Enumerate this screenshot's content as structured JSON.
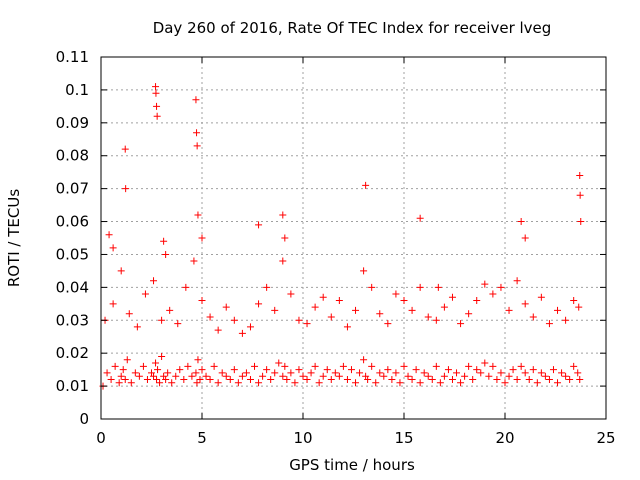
{
  "chart_data": {
    "type": "scatter",
    "title": "Day 260 of 2016, Rate Of TEC Index for receiver lveg",
    "xlabel": "GPS time / hours",
    "ylabel": "ROTI / TECUs",
    "xlim": [
      0,
      25
    ],
    "ylim": [
      0,
      0.11
    ],
    "xticks": [
      0,
      5,
      10,
      15,
      20,
      25
    ],
    "xtick_labels": [
      "0",
      "5",
      "10",
      "15",
      "20",
      "25"
    ],
    "yticks": [
      0,
      0.01,
      0.02,
      0.03,
      0.04,
      0.05,
      0.06,
      0.07,
      0.08,
      0.09,
      0.1,
      0.11
    ],
    "ytick_labels": [
      "0",
      "0.01",
      "0.02",
      "0.03",
      "0.04",
      "0.05",
      "0.06",
      "0.07",
      "0.08",
      "0.09",
      "0.1",
      "0.11"
    ],
    "grid": true,
    "marker": "+",
    "marker_color": "#ff0000",
    "series": [
      {
        "name": "ROTI",
        "x": [
          0.1,
          0.3,
          0.5,
          0.7,
          0.9,
          1.0,
          1.1,
          1.2,
          1.3,
          1.5,
          1.7,
          1.9,
          2.1,
          2.3,
          2.5,
          2.6,
          2.7,
          2.75,
          2.8,
          2.9,
          3.0,
          3.1,
          3.2,
          3.3,
          3.5,
          3.7,
          3.9,
          4.1,
          4.3,
          4.5,
          4.7,
          4.75,
          4.8,
          4.9,
          5.0,
          5.2,
          5.4,
          5.6,
          5.8,
          6.0,
          6.2,
          6.4,
          6.6,
          6.8,
          7.0,
          7.2,
          7.4,
          7.6,
          7.8,
          8.0,
          8.2,
          8.4,
          8.6,
          8.8,
          9.0,
          9.1,
          9.2,
          9.4,
          9.6,
          9.8,
          10.0,
          10.2,
          10.4,
          10.6,
          10.8,
          11.0,
          11.2,
          11.4,
          11.6,
          11.8,
          12.0,
          12.2,
          12.4,
          12.6,
          12.8,
          13.0,
          13.1,
          13.2,
          13.4,
          13.6,
          13.8,
          14.0,
          14.2,
          14.4,
          14.6,
          14.8,
          15.0,
          15.2,
          15.4,
          15.6,
          15.8,
          16.0,
          16.2,
          16.4,
          16.6,
          16.8,
          17.0,
          17.2,
          17.4,
          17.6,
          17.8,
          18.0,
          18.2,
          18.4,
          18.6,
          18.8,
          19.0,
          19.2,
          19.4,
          19.6,
          19.8,
          20.0,
          20.2,
          20.4,
          20.6,
          20.8,
          21.0,
          21.2,
          21.4,
          21.6,
          21.8,
          22.0,
          22.2,
          22.4,
          22.6,
          22.8,
          23.0,
          23.2,
          23.4,
          23.6,
          23.7,
          0.2,
          0.6,
          1.0,
          1.4,
          1.8,
          2.2,
          2.6,
          3.0,
          3.4,
          3.8,
          4.2,
          4.6,
          5.0,
          5.4,
          5.8,
          6.2,
          6.6,
          7.0,
          7.4,
          7.8,
          8.2,
          8.6,
          9.0,
          9.4,
          9.8,
          10.2,
          10.6,
          11.0,
          11.4,
          11.8,
          12.2,
          12.6,
          13.0,
          13.4,
          13.8,
          14.2,
          14.6,
          15.0,
          15.4,
          15.8,
          16.2,
          16.6,
          17.0,
          17.4,
          17.8,
          18.2,
          18.6,
          19.0,
          19.4,
          19.8,
          20.2,
          20.6,
          21.0,
          21.4,
          21.8,
          22.2,
          22.6,
          23.0,
          23.4,
          23.65,
          2.7,
          2.72,
          2.75,
          2.78,
          4.7,
          4.73,
          4.76,
          4.8,
          1.2,
          1.22,
          13.1,
          15.8,
          16.7,
          20.8,
          21.0,
          23.7,
          23.72,
          23.75,
          9.0,
          9.1,
          7.8,
          5.0,
          3.1,
          3.2,
          0.4,
          0.6
        ],
        "y": [
          0.01,
          0.014,
          0.012,
          0.016,
          0.011,
          0.013,
          0.015,
          0.012,
          0.018,
          0.011,
          0.014,
          0.013,
          0.016,
          0.012,
          0.014,
          0.013,
          0.017,
          0.012,
          0.015,
          0.011,
          0.019,
          0.013,
          0.012,
          0.014,
          0.011,
          0.013,
          0.015,
          0.012,
          0.016,
          0.013,
          0.014,
          0.011,
          0.018,
          0.012,
          0.015,
          0.013,
          0.012,
          0.016,
          0.011,
          0.014,
          0.013,
          0.012,
          0.015,
          0.011,
          0.013,
          0.014,
          0.012,
          0.016,
          0.011,
          0.013,
          0.015,
          0.012,
          0.014,
          0.017,
          0.013,
          0.016,
          0.012,
          0.014,
          0.011,
          0.015,
          0.013,
          0.012,
          0.014,
          0.016,
          0.011,
          0.013,
          0.015,
          0.012,
          0.014,
          0.013,
          0.016,
          0.012,
          0.015,
          0.011,
          0.014,
          0.018,
          0.013,
          0.012,
          0.016,
          0.011,
          0.014,
          0.013,
          0.015,
          0.012,
          0.014,
          0.011,
          0.016,
          0.013,
          0.012,
          0.015,
          0.011,
          0.014,
          0.013,
          0.012,
          0.016,
          0.011,
          0.013,
          0.015,
          0.012,
          0.014,
          0.011,
          0.013,
          0.016,
          0.012,
          0.015,
          0.014,
          0.017,
          0.013,
          0.016,
          0.012,
          0.014,
          0.011,
          0.013,
          0.015,
          0.012,
          0.016,
          0.014,
          0.012,
          0.015,
          0.011,
          0.014,
          0.013,
          0.012,
          0.015,
          0.011,
          0.014,
          0.013,
          0.012,
          0.016,
          0.014,
          0.012,
          0.03,
          0.035,
          0.045,
          0.032,
          0.028,
          0.038,
          0.042,
          0.03,
          0.033,
          0.029,
          0.04,
          0.048,
          0.036,
          0.031,
          0.027,
          0.034,
          0.03,
          0.026,
          0.028,
          0.035,
          0.04,
          0.033,
          0.048,
          0.038,
          0.03,
          0.029,
          0.034,
          0.037,
          0.031,
          0.036,
          0.028,
          0.033,
          0.045,
          0.04,
          0.032,
          0.029,
          0.038,
          0.036,
          0.033,
          0.04,
          0.031,
          0.03,
          0.034,
          0.037,
          0.029,
          0.032,
          0.036,
          0.041,
          0.038,
          0.04,
          0.033,
          0.042,
          0.035,
          0.031,
          0.037,
          0.029,
          0.033,
          0.03,
          0.036,
          0.034,
          0.101,
          0.099,
          0.095,
          0.092,
          0.097,
          0.087,
          0.083,
          0.062,
          0.082,
          0.07,
          0.071,
          0.061,
          0.04,
          0.06,
          0.055,
          0.074,
          0.068,
          0.06,
          0.062,
          0.055,
          0.059,
          0.055,
          0.054,
          0.05,
          0.056,
          0.052
        ]
      }
    ]
  }
}
